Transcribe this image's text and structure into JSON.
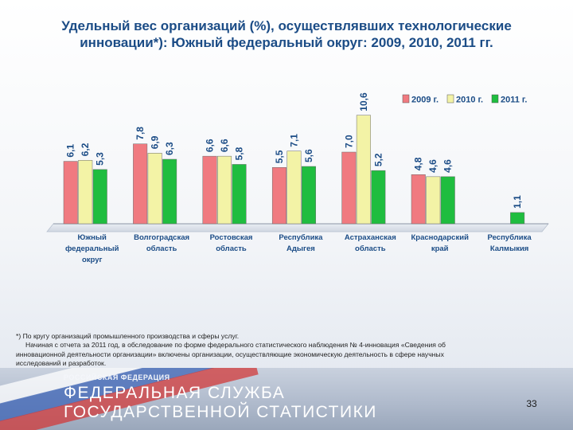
{
  "title": {
    "line1": "Удельный вес организаций (%), осуществлявших технологические",
    "line2": "инновации*): Южный федеральный округ: 2009, 2010, 2011 гг."
  },
  "chart_data": {
    "type": "bar",
    "categories": [
      [
        "Южный",
        "федеральный",
        "округ"
      ],
      [
        "Волгоградская",
        "область"
      ],
      [
        "Ростовская",
        "область"
      ],
      [
        "Республика",
        "Адыгея"
      ],
      [
        "Астраханская",
        "область"
      ],
      [
        "Краснодарский",
        "край"
      ],
      [
        "Республика",
        "Калмыкия"
      ]
    ],
    "series": [
      {
        "name": "2009 г.",
        "color": "#f07a80",
        "values": [
          6.1,
          7.8,
          6.6,
          5.5,
          7.0,
          4.8,
          null
        ]
      },
      {
        "name": "2010 г.",
        "color": "#f3f3a6",
        "values": [
          6.2,
          6.9,
          6.6,
          7.1,
          10.6,
          4.6,
          null
        ]
      },
      {
        "name": "2011 г.",
        "color": "#1fbd3f",
        "values": [
          5.3,
          6.3,
          5.8,
          5.6,
          5.2,
          4.6,
          1.1
        ]
      }
    ],
    "value_labels": [
      [
        "6,1",
        "7,8",
        "6,6",
        "5,5",
        "7,0",
        "4,8",
        ""
      ],
      [
        "6,2",
        "6,9",
        "6,6",
        "7,1",
        "10,6",
        "4,6",
        ""
      ],
      [
        "5,3",
        "6,3",
        "5,8",
        "5,6",
        "5,2",
        "4,6",
        "1,1"
      ]
    ],
    "ylim": [
      0,
      14
    ],
    "legend_position": "top-right",
    "grid": false
  },
  "footnote": {
    "line1": "*) По кругу организаций промышленного производства и сферы услуг.",
    "line2": "Начиная с отчета за 2011 год, в обследование по форме федерального статистического наблюдения № 4-инновация «Сведения об",
    "line3": "инновационной деятельности организации» включены организации, осуществляющие экономическую деятельность в сфере научных",
    "line4": "исследований и разработок."
  },
  "footer": {
    "org_small": "РОССИЙСКАЯ ФЕДЕРАЦИЯ",
    "org_line1": "ФЕДЕРАЛЬНАЯ СЛУЖБА",
    "org_line2": "ГОСУДАРСТВЕННОЙ СТАТИСТИКИ",
    "page_number": "33"
  }
}
